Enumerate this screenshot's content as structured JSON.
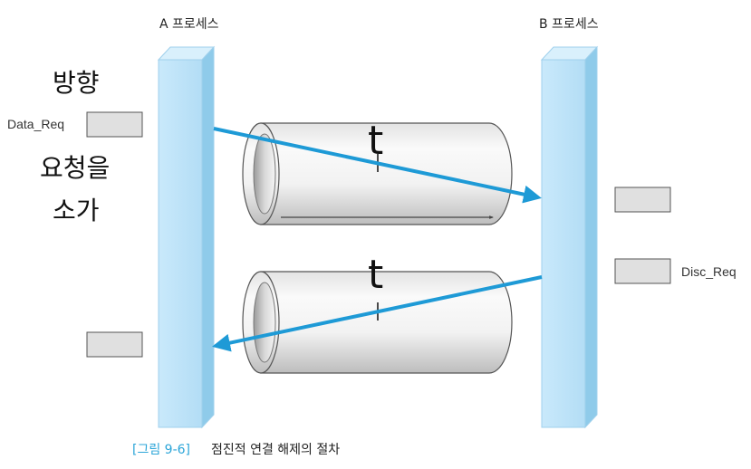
{
  "process_a_label": "A 프로세스",
  "process_b_label": "B 프로세스",
  "side_text": [
    "방향",
    "요청을",
    "소가"
  ],
  "data_req_label": "Data_Req",
  "disc_req_label": "Disc_Req",
  "pipe_top_label": "t",
  "pipe_bottom_label": "t",
  "caption": {
    "figure_ref": "[그림 9-6]",
    "title": "점진적 연결 해제의 절차"
  },
  "colors": {
    "process_bar": "#bfe3f8",
    "process_bar_top": "#d9f0fc",
    "process_bar_side": "#8fcbea",
    "arrow": "#1e9ad6",
    "pipe_body": "#f4f4f4",
    "message_box": "#e0e0e0",
    "caption_accent": "#2ba5d8"
  }
}
